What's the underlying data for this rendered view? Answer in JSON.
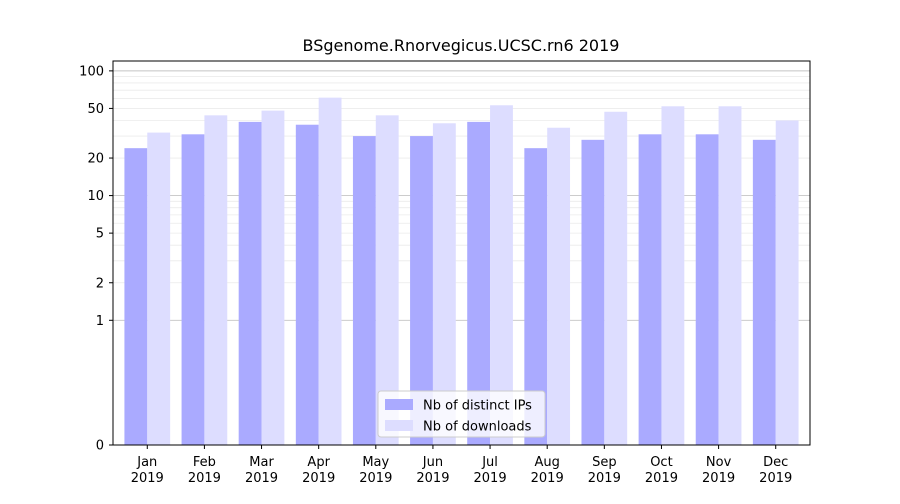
{
  "chart_data": {
    "type": "bar",
    "title": "BSgenome.Rnorvegicus.UCSC.rn6 2019",
    "xlabel": "",
    "ylabel": "",
    "y_scale": "symlog",
    "ylim": [
      0,
      120
    ],
    "y_ticks": [
      0,
      1,
      2,
      5,
      10,
      20,
      50,
      100
    ],
    "y_tick_labels": [
      "0",
      "1",
      "2",
      "5",
      "10",
      "20",
      "50",
      "100"
    ],
    "categories": [
      {
        "month": "Jan",
        "year": "2019"
      },
      {
        "month": "Feb",
        "year": "2019"
      },
      {
        "month": "Mar",
        "year": "2019"
      },
      {
        "month": "Apr",
        "year": "2019"
      },
      {
        "month": "May",
        "year": "2019"
      },
      {
        "month": "Jun",
        "year": "2019"
      },
      {
        "month": "Jul",
        "year": "2019"
      },
      {
        "month": "Aug",
        "year": "2019"
      },
      {
        "month": "Sep",
        "year": "2019"
      },
      {
        "month": "Oct",
        "year": "2019"
      },
      {
        "month": "Nov",
        "year": "2019"
      },
      {
        "month": "Dec",
        "year": "2019"
      }
    ],
    "series": [
      {
        "name": "Nb of distinct IPs",
        "color": "#aaaaff",
        "values": [
          24,
          31,
          39,
          37,
          30,
          30,
          39,
          24,
          28,
          31,
          31,
          28
        ]
      },
      {
        "name": "Nb of downloads",
        "color": "#ddddff",
        "values": [
          32,
          44,
          48,
          61,
          44,
          38,
          53,
          35,
          47,
          52,
          52,
          40
        ]
      }
    ],
    "grid": true,
    "legend_position": "bottom-center"
  }
}
